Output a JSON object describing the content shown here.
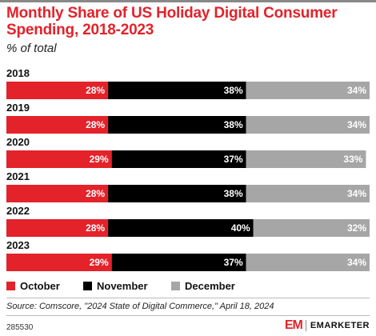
{
  "header": {
    "title": "Monthly Share of US Holiday Digital Consumer Spending, 2018-2023",
    "subtitle": "% of total"
  },
  "footer": {
    "source": "Source: Comscore, \"2024 State of Digital Commerce,\" April 18, 2024",
    "id": "285530",
    "brand_mark": "EM",
    "brand_name": "EMARKETER"
  },
  "colors": {
    "October": "#e3222a",
    "November": "#000000",
    "December": "#a6a6a6",
    "title": "#e3222a"
  },
  "chart_data": {
    "type": "bar",
    "orientation": "horizontal",
    "stacked": true,
    "categories": [
      "2018",
      "2019",
      "2020",
      "2021",
      "2022",
      "2023"
    ],
    "series": [
      {
        "name": "October",
        "values": [
          28,
          28,
          29,
          28,
          28,
          29
        ]
      },
      {
        "name": "November",
        "values": [
          38,
          38,
          37,
          38,
          40,
          37
        ]
      },
      {
        "name": "December",
        "values": [
          34,
          34,
          33,
          34,
          32,
          34
        ]
      }
    ],
    "data_labels": [
      [
        "28%",
        "38%",
        "34%"
      ],
      [
        "28%",
        "38%",
        "34%"
      ],
      [
        "29%",
        "37%",
        "33%"
      ],
      [
        "28%",
        "38%",
        "34%"
      ],
      [
        "28%",
        "40%",
        "32%"
      ],
      [
        "29%",
        "37%",
        "34%"
      ]
    ],
    "xlim": [
      0,
      100
    ],
    "legend_position": "bottom-left",
    "grid": false
  }
}
